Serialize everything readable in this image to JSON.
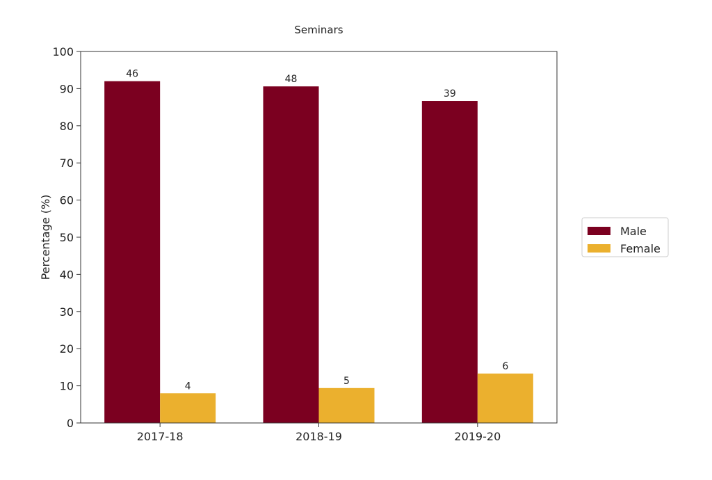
{
  "chart_data": {
    "type": "bar",
    "title": "Seminars",
    "xlabel": "",
    "ylabel": "Percentage (%)",
    "ylim": [
      0,
      100
    ],
    "yticks": [
      0,
      10,
      20,
      30,
      40,
      50,
      60,
      70,
      80,
      90,
      100
    ],
    "categories": [
      "2017-18",
      "2018-19",
      "2019-20"
    ],
    "series": [
      {
        "name": "Male",
        "color": "#7b0020",
        "values": [
          92.0,
          90.6,
          86.7
        ],
        "labels": [
          "46",
          "48",
          "39"
        ]
      },
      {
        "name": "Female",
        "color": "#ebb02e",
        "values": [
          8.0,
          9.4,
          13.3
        ],
        "labels": [
          "4",
          "5",
          "6"
        ]
      }
    ],
    "grid": false,
    "legend_position": "right"
  }
}
